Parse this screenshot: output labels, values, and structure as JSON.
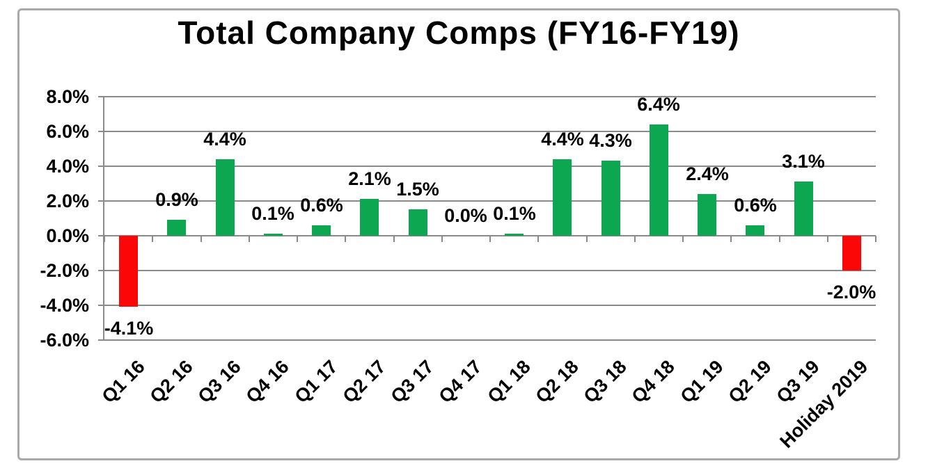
{
  "window": {
    "background": "#ffffff"
  },
  "chart": {
    "title": "Total Company Comps (FY16-FY19)",
    "colors": {
      "positive_bar": "#0CA750",
      "negative_bar": "#FB0707",
      "grid_line": "#8A8A8A",
      "frame_border": "#A9A9A9",
      "text": "#000000",
      "background": "#FFFFFF"
    }
  },
  "chart_data": {
    "type": "bar",
    "title": "Total Company Comps (FY16-FY19)",
    "categories": [
      "Q1 16",
      "Q2 16",
      "Q3 16",
      "Q4 16",
      "Q1 17",
      "Q2 17",
      "Q3 17",
      "Q4 17",
      "Q1 18",
      "Q2 18",
      "Q3 18",
      "Q4 18",
      "Q1 19",
      "Q2 19",
      "Q3 19",
      "Holiday 2019"
    ],
    "values": [
      -4.1,
      0.9,
      4.4,
      0.1,
      0.6,
      2.1,
      1.5,
      0.0,
      0.1,
      4.4,
      4.3,
      6.4,
      2.4,
      0.6,
      3.1,
      -2.0
    ],
    "data_labels": [
      "-4.1%",
      "0.9%",
      "4.4%",
      "0.1%",
      "0.6%",
      "2.1%",
      "1.5%",
      "0.0%",
      "0.1%",
      "4.4%",
      "4.3%",
      "6.4%",
      "2.4%",
      "0.6%",
      "3.1%",
      "-2.0%"
    ],
    "y_ticks": [
      8.0,
      6.0,
      4.0,
      2.0,
      0.0,
      -2.0,
      -4.0,
      -6.0
    ],
    "y_tick_labels": [
      "8.0%",
      "6.0%",
      "4.0%",
      "2.0%",
      "0.0%",
      "-2.0%",
      "-4.0%",
      "-6.0%"
    ],
    "ylim": [
      -6.0,
      8.0
    ],
    "xlabel": "",
    "ylabel": "",
    "grid": true,
    "legend": false,
    "bar_colors": {
      "positive": "#0CA750",
      "negative": "#FB0707"
    }
  }
}
